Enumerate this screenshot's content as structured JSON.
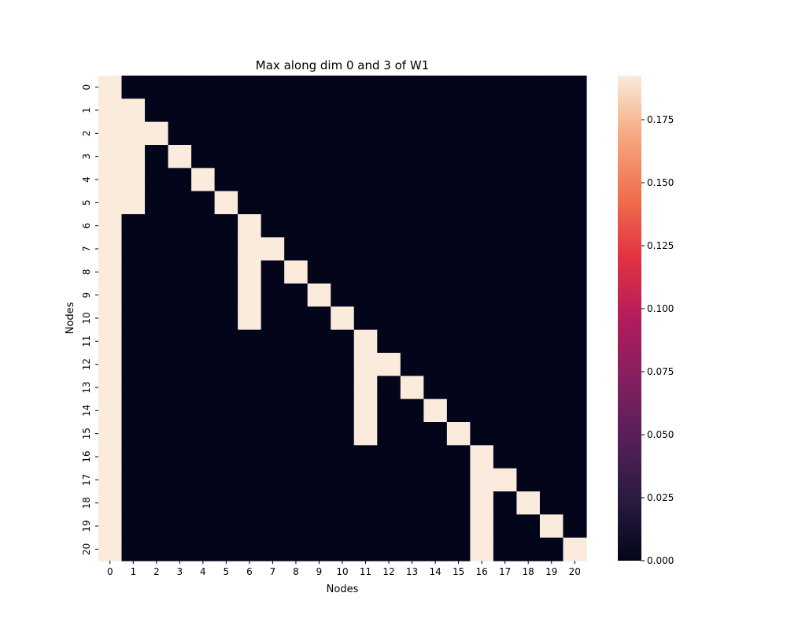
{
  "chart_data": {
    "type": "heatmap",
    "title": "Max along dim 0 and 3 of W1",
    "xlabel": "Nodes",
    "ylabel": "Nodes",
    "x_categories": [
      "0",
      "1",
      "2",
      "3",
      "4",
      "5",
      "6",
      "7",
      "8",
      "9",
      "10",
      "11",
      "12",
      "13",
      "14",
      "15",
      "16",
      "17",
      "18",
      "19",
      "20"
    ],
    "y_categories": [
      "0",
      "1",
      "2",
      "3",
      "4",
      "5",
      "6",
      "7",
      "8",
      "9",
      "10",
      "11",
      "12",
      "13",
      "14",
      "15",
      "16",
      "17",
      "18",
      "19",
      "20"
    ],
    "value_range": [
      0.0,
      0.1925
    ],
    "colormap": "rocket",
    "colorbar": {
      "ticks": [
        0.0,
        0.025,
        0.05,
        0.075,
        0.1,
        0.125,
        0.15,
        0.175
      ],
      "tick_labels": [
        "0.000",
        "0.025",
        "0.050",
        "0.075",
        "0.100",
        "0.125",
        "0.150",
        "0.175"
      ]
    },
    "values": [
      [
        0.1925,
        0,
        0,
        0,
        0,
        0,
        0,
        0,
        0,
        0,
        0,
        0,
        0,
        0,
        0,
        0,
        0,
        0,
        0,
        0,
        0
      ],
      [
        0.1925,
        0.1925,
        0,
        0,
        0,
        0,
        0,
        0,
        0,
        0,
        0,
        0,
        0,
        0,
        0,
        0,
        0,
        0,
        0,
        0,
        0
      ],
      [
        0.1925,
        0.1925,
        0.1925,
        0,
        0,
        0,
        0,
        0,
        0,
        0,
        0,
        0,
        0,
        0,
        0,
        0,
        0,
        0,
        0,
        0,
        0
      ],
      [
        0.1925,
        0.1925,
        0,
        0.1925,
        0,
        0,
        0,
        0,
        0,
        0,
        0,
        0,
        0,
        0,
        0,
        0,
        0,
        0,
        0,
        0,
        0
      ],
      [
        0.1925,
        0.1925,
        0,
        0,
        0.1925,
        0,
        0,
        0,
        0,
        0,
        0,
        0,
        0,
        0,
        0,
        0,
        0,
        0,
        0,
        0,
        0
      ],
      [
        0.1925,
        0.1925,
        0,
        0,
        0,
        0.1925,
        0,
        0,
        0,
        0,
        0,
        0,
        0,
        0,
        0,
        0,
        0,
        0,
        0,
        0,
        0
      ],
      [
        0.1925,
        0,
        0,
        0,
        0,
        0,
        0.1925,
        0,
        0,
        0,
        0,
        0,
        0,
        0,
        0,
        0,
        0,
        0,
        0,
        0,
        0
      ],
      [
        0.1925,
        0,
        0,
        0,
        0,
        0,
        0.1925,
        0.1925,
        0,
        0,
        0,
        0,
        0,
        0,
        0,
        0,
        0,
        0,
        0,
        0,
        0
      ],
      [
        0.1925,
        0,
        0,
        0,
        0,
        0,
        0.1925,
        0,
        0.1925,
        0,
        0,
        0,
        0,
        0,
        0,
        0,
        0,
        0,
        0,
        0,
        0
      ],
      [
        0.1925,
        0,
        0,
        0,
        0,
        0,
        0.1925,
        0,
        0,
        0.1925,
        0,
        0,
        0,
        0,
        0,
        0,
        0,
        0,
        0,
        0,
        0
      ],
      [
        0.1925,
        0,
        0,
        0,
        0,
        0,
        0.1925,
        0,
        0,
        0,
        0.1925,
        0,
        0,
        0,
        0,
        0,
        0,
        0,
        0,
        0,
        0
      ],
      [
        0.1925,
        0,
        0,
        0,
        0,
        0,
        0,
        0,
        0,
        0,
        0,
        0.1925,
        0,
        0,
        0,
        0,
        0,
        0,
        0,
        0,
        0
      ],
      [
        0.1925,
        0,
        0,
        0,
        0,
        0,
        0,
        0,
        0,
        0,
        0,
        0.1925,
        0.1925,
        0,
        0,
        0,
        0,
        0,
        0,
        0,
        0
      ],
      [
        0.1925,
        0,
        0,
        0,
        0,
        0,
        0,
        0,
        0,
        0,
        0,
        0.1925,
        0,
        0.1925,
        0,
        0,
        0,
        0,
        0,
        0,
        0
      ],
      [
        0.1925,
        0,
        0,
        0,
        0,
        0,
        0,
        0,
        0,
        0,
        0,
        0.1925,
        0,
        0,
        0.1925,
        0,
        0,
        0,
        0,
        0,
        0
      ],
      [
        0.1925,
        0,
        0,
        0,
        0,
        0,
        0,
        0,
        0,
        0,
        0,
        0.1925,
        0,
        0,
        0,
        0.1925,
        0,
        0,
        0,
        0,
        0
      ],
      [
        0.1925,
        0,
        0,
        0,
        0,
        0,
        0,
        0,
        0,
        0,
        0,
        0,
        0,
        0,
        0,
        0,
        0.1925,
        0,
        0,
        0,
        0
      ],
      [
        0.1925,
        0,
        0,
        0,
        0,
        0,
        0,
        0,
        0,
        0,
        0,
        0,
        0,
        0,
        0,
        0,
        0.1925,
        0.1925,
        0,
        0,
        0
      ],
      [
        0.1925,
        0,
        0,
        0,
        0,
        0,
        0,
        0,
        0,
        0,
        0,
        0,
        0,
        0,
        0,
        0,
        0.1925,
        0,
        0.1925,
        0,
        0
      ],
      [
        0.1925,
        0,
        0,
        0,
        0,
        0,
        0,
        0,
        0,
        0,
        0,
        0,
        0,
        0,
        0,
        0,
        0.1925,
        0,
        0,
        0.1925,
        0
      ],
      [
        0.1925,
        0,
        0,
        0,
        0,
        0,
        0,
        0,
        0,
        0,
        0,
        0,
        0,
        0,
        0,
        0,
        0.1925,
        0,
        0,
        0,
        0.1925
      ]
    ]
  }
}
